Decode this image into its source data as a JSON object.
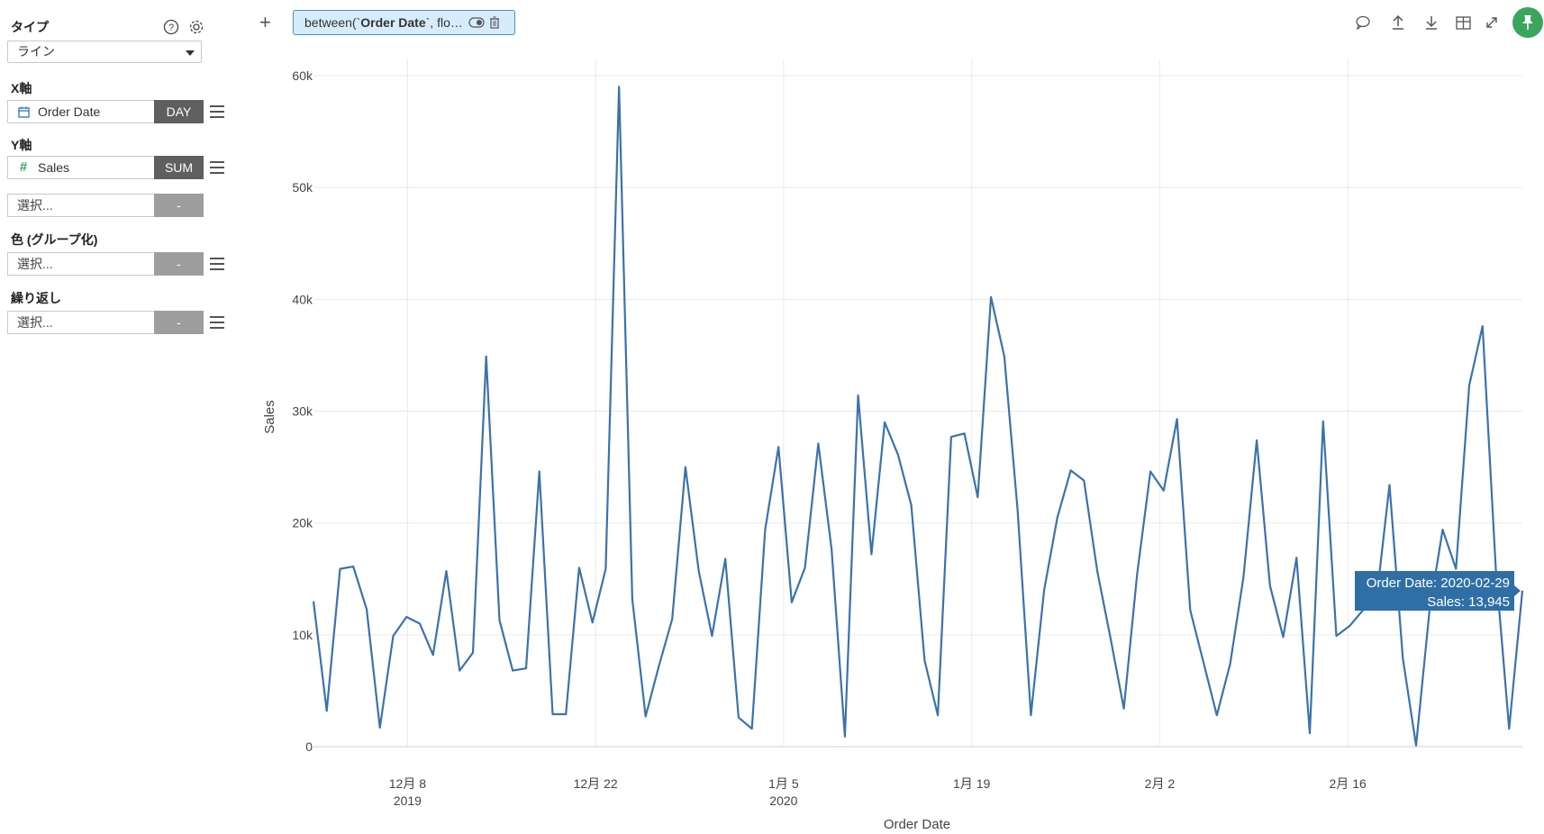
{
  "sidebar": {
    "type_label": "タイプ",
    "type_value": "ライン",
    "x_axis_label": "X軸",
    "x_field": {
      "name": "Order Date",
      "agg": "DAY",
      "icon": "calendar-icon"
    },
    "y_axis_label": "Y軸",
    "y_field": {
      "name": "Sales",
      "agg": "SUM",
      "icon": "hash-icon"
    },
    "y2_field": {
      "name": "選択...",
      "agg": "-"
    },
    "color_label": "色 (グループ化)",
    "color_field": {
      "name": "選択...",
      "agg": "-"
    },
    "repeat_label": "繰り返し",
    "repeat_field": {
      "name": "選択...",
      "agg": "-"
    }
  },
  "toolbar": {
    "filter_prefix": "between(`",
    "filter_bold": "Order Date",
    "filter_suffix": "`, flo…",
    "icons": [
      "comment-icon",
      "upload-icon",
      "download-icon",
      "table-icon",
      "expand-icon",
      "pin-icon"
    ],
    "pin_color": "#3aa65c"
  },
  "tooltip": {
    "line1": "Order Date: 2020-02-29",
    "line2": "Sales: 13,945"
  },
  "chart_data": {
    "type": "line",
    "xlabel": "Order Date",
    "ylabel": "Sales",
    "ylim": [
      0,
      60000
    ],
    "y_ticks": [
      "0",
      "10k",
      "20k",
      "30k",
      "40k",
      "50k",
      "60k"
    ],
    "x_ticks": [
      {
        "date": "2019-12-08",
        "label": "12月 8",
        "year": "2019"
      },
      {
        "date": "2019-12-22",
        "label": "12月 22",
        "year": ""
      },
      {
        "date": "2020-01-05",
        "label": "1月 5",
        "year": "2020"
      },
      {
        "date": "2020-01-19",
        "label": "1月 19",
        "year": ""
      },
      {
        "date": "2020-02-02",
        "label": "2月 2",
        "year": ""
      },
      {
        "date": "2020-02-16",
        "label": "2月 16",
        "year": ""
      }
    ],
    "grid": true,
    "line_color": "#3a73ab",
    "series": [
      {
        "x_start": "2019-12-01",
        "x_end": "2020-02-29",
        "values": [
          13000,
          3200,
          15900,
          16100,
          12300,
          1700,
          9900,
          11600,
          11000,
          8200,
          15700,
          6800,
          8400,
          34900,
          11300,
          6800,
          7000,
          24600,
          2900,
          2900,
          16000,
          11100,
          15900,
          59000,
          13200,
          2700,
          7200,
          11400,
          25000,
          15700,
          9900,
          16800,
          2600,
          1600,
          19400,
          26800,
          12900,
          16000,
          27100,
          17700,
          900,
          31400,
          17200,
          29000,
          26100,
          21600,
          7700,
          2800,
          27700,
          28000,
          22300,
          40200,
          34900,
          21200,
          2800,
          14000,
          20500,
          24700,
          23800,
          15700,
          9700,
          3400,
          15400,
          24600,
          22900,
          29300,
          12200,
          7500,
          2800,
          7400,
          15100,
          27400,
          14400,
          9800,
          16900,
          1200,
          29100,
          9900,
          10800,
          12200,
          13000,
          23400,
          7900,
          100,
          12100,
          19400,
          15900,
          32300,
          37600,
          15900,
          1600,
          13945
        ]
      }
    ]
  }
}
